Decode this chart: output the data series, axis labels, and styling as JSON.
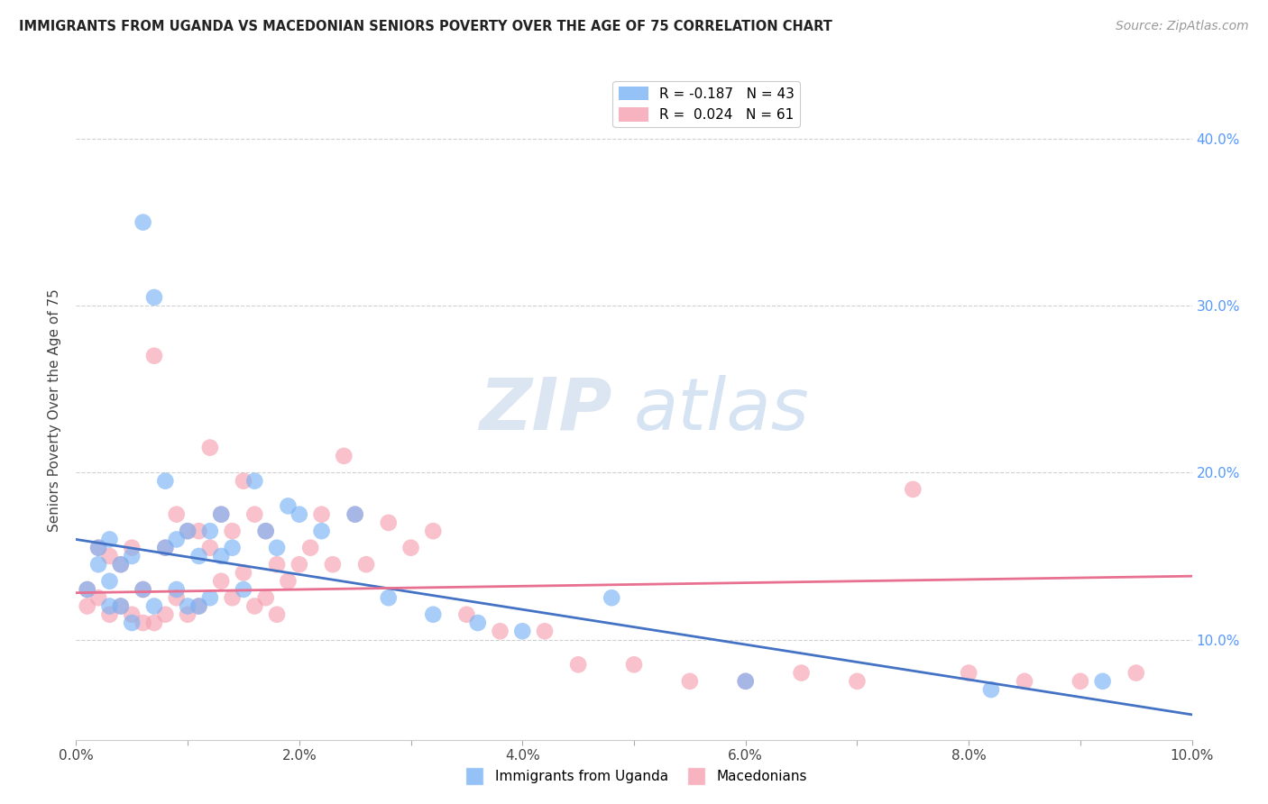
{
  "title": "IMMIGRANTS FROM UGANDA VS MACEDONIAN SENIORS POVERTY OVER THE AGE OF 75 CORRELATION CHART",
  "source": "Source: ZipAtlas.com",
  "ylabel": "Seniors Poverty Over the Age of 75",
  "xlabel_ticks": [
    "0.0%",
    "",
    "2.0%",
    "",
    "4.0%",
    "",
    "6.0%",
    "",
    "8.0%",
    "",
    "10.0%"
  ],
  "ylabel_ticks": [
    "10.0%",
    "20.0%",
    "30.0%",
    "40.0%"
  ],
  "xlim": [
    0.0,
    0.1
  ],
  "ylim": [
    0.04,
    0.435
  ],
  "legend1_label": "R = -0.187   N = 43",
  "legend2_label": "R =  0.024   N = 61",
  "legend_bottom_label1": "Immigrants from Uganda",
  "legend_bottom_label2": "Macedonians",
  "blue_color": "#7ab3f5",
  "pink_color": "#f5a0b0",
  "blue_line_color": "#4472c4",
  "pink_line_color": "#e87090",
  "watermark_zip": "ZIP",
  "watermark_atlas": "atlas",
  "blue_scatter_x": [
    0.001,
    0.002,
    0.002,
    0.003,
    0.003,
    0.003,
    0.004,
    0.004,
    0.005,
    0.005,
    0.006,
    0.006,
    0.007,
    0.007,
    0.008,
    0.008,
    0.009,
    0.009,
    0.01,
    0.01,
    0.011,
    0.011,
    0.012,
    0.012,
    0.013,
    0.013,
    0.014,
    0.015,
    0.016,
    0.017,
    0.018,
    0.019,
    0.02,
    0.022,
    0.025,
    0.028,
    0.032,
    0.036,
    0.04,
    0.048,
    0.06,
    0.082,
    0.092
  ],
  "blue_scatter_y": [
    0.13,
    0.155,
    0.145,
    0.16,
    0.135,
    0.12,
    0.145,
    0.12,
    0.15,
    0.11,
    0.35,
    0.13,
    0.305,
    0.12,
    0.195,
    0.155,
    0.16,
    0.13,
    0.165,
    0.12,
    0.15,
    0.12,
    0.165,
    0.125,
    0.175,
    0.15,
    0.155,
    0.13,
    0.195,
    0.165,
    0.155,
    0.18,
    0.175,
    0.165,
    0.175,
    0.125,
    0.115,
    0.11,
    0.105,
    0.125,
    0.075,
    0.07,
    0.075
  ],
  "pink_scatter_x": [
    0.001,
    0.001,
    0.002,
    0.002,
    0.003,
    0.003,
    0.004,
    0.004,
    0.005,
    0.005,
    0.006,
    0.006,
    0.007,
    0.007,
    0.008,
    0.008,
    0.009,
    0.009,
    0.01,
    0.01,
    0.011,
    0.011,
    0.012,
    0.012,
    0.013,
    0.013,
    0.014,
    0.014,
    0.015,
    0.015,
    0.016,
    0.016,
    0.017,
    0.017,
    0.018,
    0.018,
    0.019,
    0.02,
    0.021,
    0.022,
    0.023,
    0.024,
    0.025,
    0.026,
    0.028,
    0.03,
    0.032,
    0.035,
    0.038,
    0.042,
    0.045,
    0.05,
    0.055,
    0.06,
    0.065,
    0.07,
    0.075,
    0.08,
    0.085,
    0.09,
    0.095
  ],
  "pink_scatter_y": [
    0.13,
    0.12,
    0.155,
    0.125,
    0.15,
    0.115,
    0.145,
    0.12,
    0.155,
    0.115,
    0.13,
    0.11,
    0.27,
    0.11,
    0.155,
    0.115,
    0.175,
    0.125,
    0.165,
    0.115,
    0.165,
    0.12,
    0.215,
    0.155,
    0.175,
    0.135,
    0.165,
    0.125,
    0.195,
    0.14,
    0.175,
    0.12,
    0.165,
    0.125,
    0.145,
    0.115,
    0.135,
    0.145,
    0.155,
    0.175,
    0.145,
    0.21,
    0.175,
    0.145,
    0.17,
    0.155,
    0.165,
    0.115,
    0.105,
    0.105,
    0.085,
    0.085,
    0.075,
    0.075,
    0.08,
    0.075,
    0.19,
    0.08,
    0.075,
    0.075,
    0.08
  ],
  "blue_trend_x": [
    0.0,
    0.1
  ],
  "blue_trend_y": [
    0.16,
    0.055
  ],
  "pink_trend_x": [
    0.0,
    0.1
  ],
  "pink_trend_y": [
    0.128,
    0.138
  ]
}
